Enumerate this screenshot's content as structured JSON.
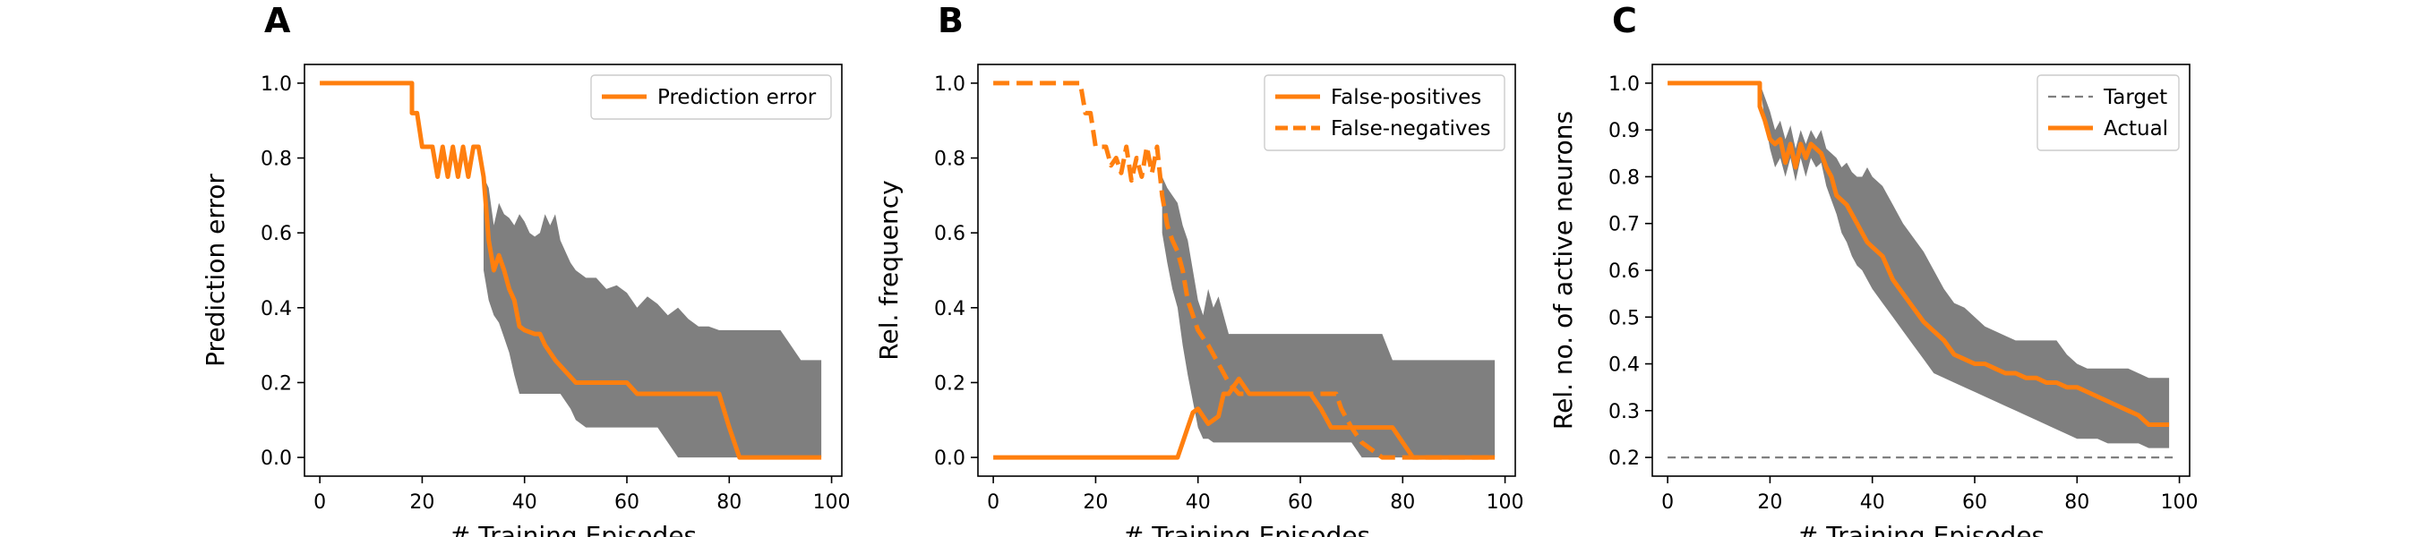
{
  "chart_data": [
    {
      "panel": "A",
      "type": "line",
      "xlabel": "# Training Episodes",
      "ylabel": "Prediction error",
      "xlim": [
        -3,
        102
      ],
      "ylim": [
        -0.05,
        1.05
      ],
      "xticks": [
        "0",
        "20",
        "40",
        "60",
        "80",
        "100"
      ],
      "yticks": [
        "0.0",
        "0.2",
        "0.4",
        "0.6",
        "0.8",
        "1.0"
      ],
      "legend_position": "upper right",
      "band": {
        "color": "#7f7f7f",
        "x": [
          32,
          33,
          34,
          35,
          36,
          37,
          38,
          39,
          40,
          41,
          42,
          43,
          44,
          45,
          46,
          47,
          48,
          49,
          50,
          52,
          54,
          56,
          58,
          60,
          62,
          64,
          66,
          68,
          70,
          72,
          74,
          76,
          78,
          80,
          82,
          84,
          86,
          88,
          90,
          92,
          94,
          96,
          98
        ],
        "upper": [
          0.75,
          0.72,
          0.62,
          0.68,
          0.65,
          0.64,
          0.62,
          0.65,
          0.63,
          0.6,
          0.59,
          0.6,
          0.65,
          0.62,
          0.65,
          0.58,
          0.55,
          0.52,
          0.5,
          0.48,
          0.48,
          0.45,
          0.46,
          0.44,
          0.4,
          0.43,
          0.41,
          0.38,
          0.4,
          0.37,
          0.35,
          0.35,
          0.34,
          0.34,
          0.34,
          0.34,
          0.34,
          0.34,
          0.34,
          0.3,
          0.26,
          0.26,
          0.26
        ],
        "lower": [
          0.5,
          0.42,
          0.38,
          0.36,
          0.32,
          0.28,
          0.22,
          0.17,
          0.17,
          0.17,
          0.17,
          0.17,
          0.17,
          0.17,
          0.17,
          0.17,
          0.15,
          0.13,
          0.1,
          0.08,
          0.08,
          0.08,
          0.08,
          0.08,
          0.08,
          0.08,
          0.08,
          0.04,
          0.0,
          0.0,
          0.0,
          0.0,
          0.0,
          0.0,
          0.0,
          0.0,
          0.0,
          0.0,
          0.0,
          0.0,
          0.0,
          0.0,
          0.0
        ]
      },
      "series": [
        {
          "name": "Prediction error",
          "color": "#ff7f0e",
          "style": "solid",
          "x": [
            0,
            18,
            18,
            19,
            20,
            21,
            22,
            23,
            24,
            25,
            26,
            27,
            28,
            29,
            30,
            31,
            32,
            33,
            34,
            35,
            36,
            37,
            38,
            39,
            40,
            42,
            43,
            44,
            46,
            48,
            50,
            52,
            54,
            56,
            58,
            60,
            62,
            64,
            66,
            68,
            70,
            72,
            74,
            76,
            78,
            80,
            82,
            84,
            86,
            88,
            90,
            92,
            94,
            96,
            98
          ],
          "y": [
            1.0,
            1.0,
            0.92,
            0.92,
            0.83,
            0.83,
            0.83,
            0.75,
            0.83,
            0.75,
            0.83,
            0.75,
            0.83,
            0.75,
            0.83,
            0.83,
            0.75,
            0.58,
            0.5,
            0.54,
            0.5,
            0.45,
            0.42,
            0.35,
            0.34,
            0.33,
            0.33,
            0.3,
            0.26,
            0.23,
            0.2,
            0.2,
            0.2,
            0.2,
            0.2,
            0.2,
            0.17,
            0.17,
            0.17,
            0.17,
            0.17,
            0.17,
            0.17,
            0.17,
            0.17,
            0.08,
            0.0,
            0.0,
            0.0,
            0.0,
            0.0,
            0.0,
            0.0,
            0.0,
            0.0
          ]
        }
      ]
    },
    {
      "panel": "B",
      "type": "line",
      "xlabel": "# Training Episodes",
      "ylabel": "Rel. frequency",
      "xlim": [
        -3,
        102
      ],
      "ylim": [
        -0.05,
        1.05
      ],
      "xticks": [
        "0",
        "20",
        "40",
        "60",
        "80",
        "100"
      ],
      "yticks": [
        "0.0",
        "0.2",
        "0.4",
        "0.6",
        "0.8",
        "1.0"
      ],
      "legend_position": "upper right",
      "band": {
        "color": "#7f7f7f",
        "x": [
          33,
          34,
          35,
          36,
          37,
          38,
          39,
          40,
          41,
          42,
          43,
          44,
          45,
          46,
          47,
          48,
          50,
          52,
          54,
          56,
          58,
          60,
          62,
          64,
          66,
          68,
          70,
          72,
          74,
          76,
          78,
          80,
          82,
          84,
          86,
          88,
          90,
          92,
          94,
          96,
          98
        ],
        "upper": [
          0.75,
          0.72,
          0.7,
          0.68,
          0.62,
          0.58,
          0.5,
          0.42,
          0.38,
          0.45,
          0.4,
          0.43,
          0.38,
          0.33,
          0.33,
          0.33,
          0.33,
          0.33,
          0.33,
          0.33,
          0.33,
          0.33,
          0.33,
          0.33,
          0.33,
          0.33,
          0.33,
          0.33,
          0.33,
          0.33,
          0.26,
          0.26,
          0.26,
          0.26,
          0.26,
          0.26,
          0.26,
          0.26,
          0.26,
          0.26,
          0.26
        ],
        "lower": [
          0.6,
          0.52,
          0.45,
          0.4,
          0.3,
          0.22,
          0.15,
          0.08,
          0.05,
          0.05,
          0.04,
          0.04,
          0.04,
          0.04,
          0.04,
          0.04,
          0.04,
          0.04,
          0.04,
          0.04,
          0.04,
          0.04,
          0.04,
          0.04,
          0.04,
          0.04,
          0.04,
          0.0,
          0.0,
          0.0,
          0.0,
          0.0,
          0.0,
          0.0,
          0.0,
          0.0,
          0.0,
          0.0,
          0.0,
          0.0,
          0.0
        ]
      },
      "series": [
        {
          "name": "False-positives",
          "color": "#ff7f0e",
          "style": "solid",
          "x": [
            0,
            36,
            37,
            38,
            39,
            40,
            41,
            42,
            43,
            44,
            45,
            46,
            47,
            48,
            49,
            50,
            52,
            54,
            56,
            58,
            60,
            62,
            64,
            66,
            68,
            70,
            72,
            74,
            76,
            78,
            80,
            82,
            84,
            86,
            88,
            90,
            92,
            94,
            96,
            98
          ],
          "y": [
            0.0,
            0.0,
            0.04,
            0.08,
            0.12,
            0.13,
            0.11,
            0.09,
            0.1,
            0.11,
            0.17,
            0.17,
            0.19,
            0.21,
            0.19,
            0.17,
            0.17,
            0.17,
            0.17,
            0.17,
            0.17,
            0.17,
            0.13,
            0.08,
            0.08,
            0.08,
            0.08,
            0.08,
            0.08,
            0.08,
            0.04,
            0.0,
            0.0,
            0.0,
            0.0,
            0.0,
            0.0,
            0.0,
            0.0,
            0.0
          ]
        },
        {
          "name": "False-negatives",
          "color": "#ff7f0e",
          "style": "dashed",
          "x": [
            0,
            17,
            18,
            19,
            20,
            21,
            22,
            23,
            24,
            25,
            26,
            27,
            28,
            29,
            30,
            31,
            32,
            33,
            34,
            35,
            36,
            37,
            38,
            39,
            40,
            41,
            42,
            44,
            46,
            48,
            50,
            52,
            54,
            56,
            58,
            60,
            62,
            64,
            66,
            67,
            68,
            70,
            72,
            74,
            76,
            78,
            80,
            82,
            84,
            86,
            88,
            90,
            92,
            94,
            96,
            98
          ],
          "y": [
            1.0,
            1.0,
            0.92,
            0.92,
            0.83,
            0.83,
            0.83,
            0.78,
            0.8,
            0.76,
            0.83,
            0.74,
            0.8,
            0.75,
            0.83,
            0.76,
            0.83,
            0.7,
            0.62,
            0.58,
            0.55,
            0.5,
            0.42,
            0.38,
            0.34,
            0.32,
            0.3,
            0.25,
            0.2,
            0.17,
            0.17,
            0.17,
            0.17,
            0.17,
            0.17,
            0.17,
            0.17,
            0.17,
            0.17,
            0.17,
            0.13,
            0.08,
            0.04,
            0.02,
            0.0,
            0.0,
            0.0,
            0.0,
            0.0,
            0.0,
            0.0,
            0.0,
            0.0,
            0.0,
            0.0,
            0.0
          ]
        }
      ]
    },
    {
      "panel": "C",
      "type": "line",
      "xlabel": "# Training Episodes",
      "ylabel": "Rel. no. of active neurons",
      "xlim": [
        -3,
        102
      ],
      "ylim": [
        0.16,
        1.04
      ],
      "xticks": [
        "0",
        "20",
        "40",
        "60",
        "80",
        "100"
      ],
      "yticks": [
        "0.2",
        "0.3",
        "0.4",
        "0.5",
        "0.6",
        "0.7",
        "0.8",
        "0.9",
        "1.0"
      ],
      "legend_position": "upper right",
      "band": {
        "color": "#7f7f7f",
        "x": [
          18,
          19,
          20,
          21,
          22,
          23,
          24,
          25,
          26,
          27,
          28,
          29,
          30,
          31,
          32,
          33,
          34,
          35,
          36,
          37,
          38,
          39,
          40,
          42,
          44,
          46,
          48,
          50,
          52,
          54,
          56,
          58,
          60,
          62,
          64,
          66,
          68,
          70,
          72,
          74,
          76,
          78,
          80,
          82,
          84,
          86,
          88,
          90,
          92,
          94,
          96,
          98
        ],
        "upper": [
          1.0,
          0.97,
          0.94,
          0.9,
          0.92,
          0.88,
          0.91,
          0.86,
          0.9,
          0.87,
          0.9,
          0.88,
          0.9,
          0.86,
          0.85,
          0.84,
          0.82,
          0.83,
          0.81,
          0.8,
          0.8,
          0.82,
          0.8,
          0.78,
          0.74,
          0.7,
          0.67,
          0.64,
          0.6,
          0.56,
          0.53,
          0.52,
          0.5,
          0.48,
          0.47,
          0.46,
          0.45,
          0.45,
          0.45,
          0.45,
          0.45,
          0.42,
          0.4,
          0.39,
          0.39,
          0.39,
          0.39,
          0.39,
          0.38,
          0.37,
          0.37,
          0.37
        ],
        "lower": [
          1.0,
          0.92,
          0.86,
          0.82,
          0.84,
          0.8,
          0.84,
          0.79,
          0.84,
          0.8,
          0.84,
          0.82,
          0.83,
          0.78,
          0.75,
          0.72,
          0.68,
          0.66,
          0.63,
          0.61,
          0.6,
          0.58,
          0.56,
          0.53,
          0.5,
          0.47,
          0.44,
          0.41,
          0.38,
          0.37,
          0.36,
          0.35,
          0.34,
          0.33,
          0.32,
          0.31,
          0.3,
          0.29,
          0.28,
          0.27,
          0.26,
          0.25,
          0.24,
          0.24,
          0.24,
          0.23,
          0.23,
          0.23,
          0.23,
          0.22,
          0.22,
          0.22
        ]
      },
      "series": [
        {
          "name": "Target",
          "color": "#7f7f7f",
          "style": "dashed",
          "x": [
            0,
            99
          ],
          "y": [
            0.2,
            0.2
          ]
        },
        {
          "name": "Actual",
          "color": "#ff7f0e",
          "style": "solid",
          "x": [
            0,
            18,
            18,
            19,
            20,
            21,
            22,
            23,
            24,
            25,
            26,
            27,
            28,
            29,
            30,
            31,
            32,
            33,
            34,
            35,
            36,
            37,
            38,
            39,
            40,
            42,
            44,
            46,
            48,
            50,
            52,
            54,
            56,
            58,
            60,
            62,
            64,
            66,
            68,
            70,
            72,
            74,
            76,
            78,
            80,
            82,
            84,
            86,
            88,
            90,
            92,
            94,
            96,
            98
          ],
          "y": [
            1.0,
            1.0,
            0.95,
            0.92,
            0.88,
            0.87,
            0.88,
            0.83,
            0.87,
            0.82,
            0.87,
            0.84,
            0.87,
            0.86,
            0.85,
            0.82,
            0.8,
            0.76,
            0.75,
            0.74,
            0.72,
            0.7,
            0.68,
            0.66,
            0.65,
            0.63,
            0.58,
            0.55,
            0.52,
            0.49,
            0.47,
            0.45,
            0.42,
            0.41,
            0.4,
            0.4,
            0.39,
            0.38,
            0.38,
            0.37,
            0.37,
            0.36,
            0.36,
            0.35,
            0.35,
            0.34,
            0.33,
            0.32,
            0.31,
            0.3,
            0.29,
            0.27,
            0.27,
            0.27
          ]
        }
      ]
    }
  ]
}
